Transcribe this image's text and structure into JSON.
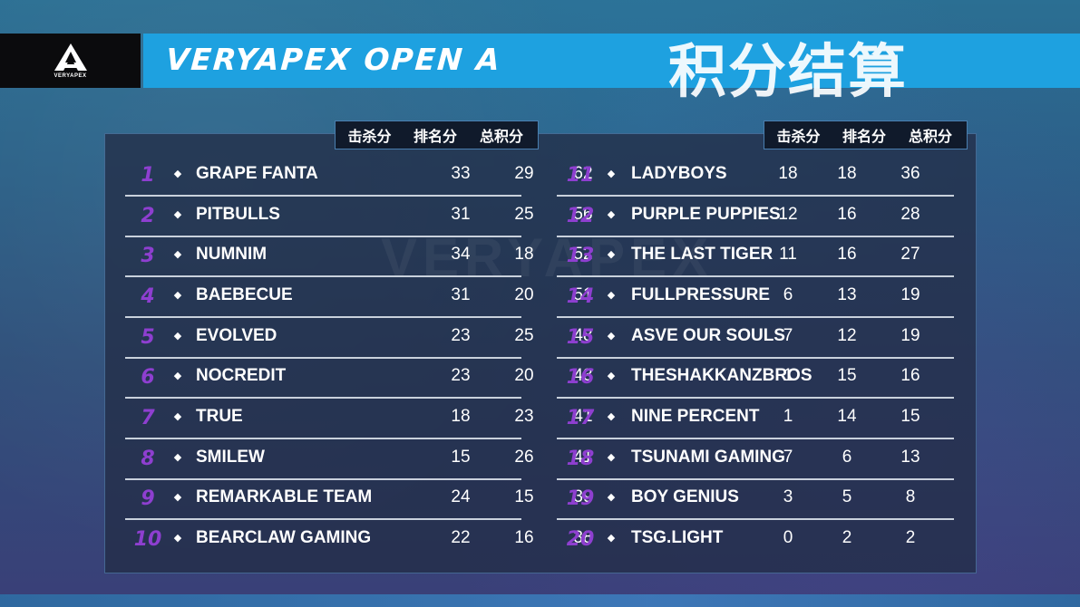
{
  "header": {
    "logo_text": "VERYAPEX",
    "title": "VERYAPEX OPEN A",
    "title_cn": "积分结算"
  },
  "columns": {
    "kills": "击杀分",
    "placement": "排名分",
    "total": "总积分"
  },
  "watermark": "VERYAPEX",
  "left_rows": [
    {
      "rank": "1",
      "team": "GRAPE FANTA",
      "kills": "33",
      "placement": "29",
      "total": "62"
    },
    {
      "rank": "2",
      "team": "PITBULLS",
      "kills": "31",
      "placement": "25",
      "total": "56"
    },
    {
      "rank": "3",
      "team": "NUMNIM",
      "kills": "34",
      "placement": "18",
      "total": "52"
    },
    {
      "rank": "4",
      "team": "BAEBECUE",
      "kills": "31",
      "placement": "20",
      "total": "51"
    },
    {
      "rank": "5",
      "team": "EVOLVED",
      "kills": "23",
      "placement": "25",
      "total": "48"
    },
    {
      "rank": "6",
      "team": "NOCREDIT",
      "kills": "23",
      "placement": "20",
      "total": "43"
    },
    {
      "rank": "7",
      "team": "TRUE",
      "kills": "18",
      "placement": "23",
      "total": "41"
    },
    {
      "rank": "8",
      "team": "SMILEW",
      "kills": "15",
      "placement": "26",
      "total": "41"
    },
    {
      "rank": "9",
      "team": "REMARKABLE TEAM",
      "kills": "24",
      "placement": "15",
      "total": "39"
    },
    {
      "rank": "10",
      "team": "BEARCLAW GAMING",
      "kills": "22",
      "placement": "16",
      "total": "38"
    }
  ],
  "right_rows": [
    {
      "rank": "11",
      "team": "LADYBOYS",
      "kills": "18",
      "placement": "18",
      "total": "36"
    },
    {
      "rank": "12",
      "team": "PURPLE PUPPIES",
      "kills": "12",
      "placement": "16",
      "total": "28"
    },
    {
      "rank": "13",
      "team": "THE LAST TIGER",
      "kills": "11",
      "placement": "16",
      "total": "27"
    },
    {
      "rank": "14",
      "team": "FULLPRESSURE",
      "kills": "6",
      "placement": "13",
      "total": "19"
    },
    {
      "rank": "15",
      "team": "ASVE OUR SOULS",
      "kills": "7",
      "placement": "12",
      "total": "19"
    },
    {
      "rank": "16",
      "team": "THESHAKKANZBROS",
      "kills": "1",
      "placement": "15",
      "total": "16"
    },
    {
      "rank": "17",
      "team": "NINE PERCENT",
      "kills": "1",
      "placement": "14",
      "total": "15"
    },
    {
      "rank": "18",
      "team": "TSUNAMI GAMING",
      "kills": "7",
      "placement": "6",
      "total": "13"
    },
    {
      "rank": "19",
      "team": "BOY GENIUS",
      "kills": "3",
      "placement": "5",
      "total": "8"
    },
    {
      "rank": "20",
      "team": "TSG.LIGHT",
      "kills": "0",
      "placement": "2",
      "total": "2"
    }
  ],
  "colors": {
    "accent_blue": "#1ea1e0",
    "rank_purple": "#8e3fd0"
  }
}
